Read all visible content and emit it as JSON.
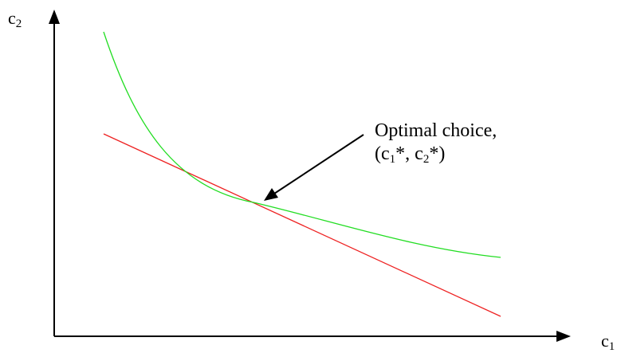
{
  "axes": {
    "y_label": {
      "base": "c",
      "sub": "2"
    },
    "x_label": {
      "base": "c",
      "sub": "1"
    }
  },
  "annotation": {
    "line1": "Optimal choice,",
    "line2": [
      {
        "t": "(c"
      },
      {
        "sub": "1"
      },
      {
        "t": "*, c"
      },
      {
        "sub": "2"
      },
      {
        "t": "*)"
      }
    ]
  },
  "colors": {
    "axes": "#000000",
    "indifference_curve": "#22dd22",
    "budget_line": "#ee2222",
    "arrow": "#000000"
  }
}
